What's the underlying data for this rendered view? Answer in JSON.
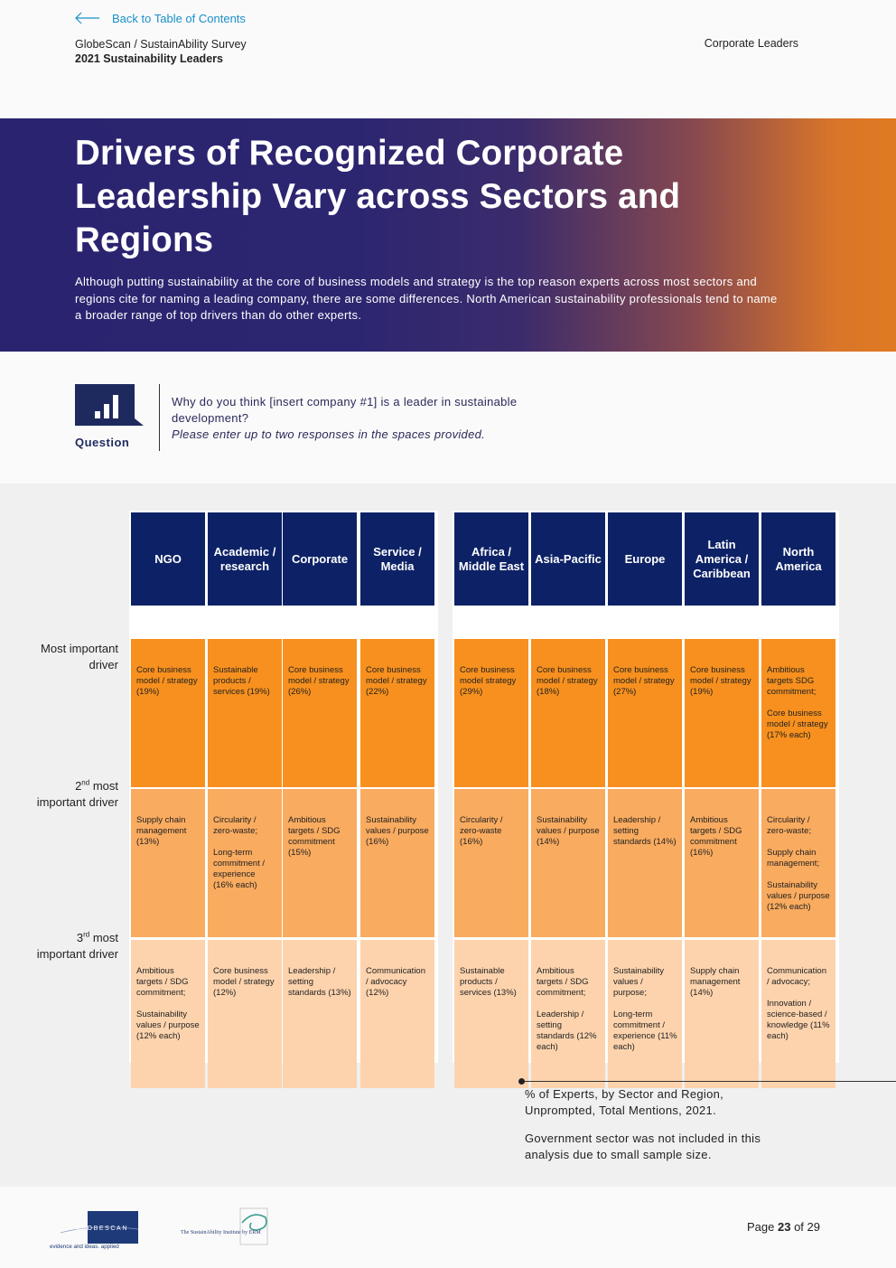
{
  "header": {
    "back_link": "Back to Table of Contents",
    "brand_line1": "GlobeScan / SustainAbility Survey",
    "brand_line2": "2021 Sustainability Leaders",
    "section": "Corporate Leaders"
  },
  "hero": {
    "title": "Drivers of Recognized Corporate Leadership Vary across Sectors and Regions",
    "description": "Although putting sustainability at the core of business models and strategy is the top reason experts across most sectors and regions cite for naming a leading company, there are some differences. North American sustainability professionals tend to name a broader range of top drivers than do other experts."
  },
  "question": {
    "label": "Question",
    "text": "Why do you think [insert company #1] is a leader in sustainable development?",
    "instruction": "Please enter up to two responses in the spaces provided."
  },
  "table": {
    "row_labels": [
      {
        "prefix": "",
        "sup": "",
        "rest": "Most important driver"
      },
      {
        "prefix": "2",
        "sup": "nd",
        "rest": " most important driver"
      },
      {
        "prefix": "3",
        "sup": "rd",
        "rest": " most important driver"
      }
    ],
    "sectors": [
      {
        "name": "NGO",
        "cells": [
          "Core business model / strategy (19%)",
          "Supply chain management (13%)",
          "Ambitious targets / SDG commitment;\n\nSustainability values / purpose (12% each)"
        ]
      },
      {
        "name": "Academic / research",
        "cells": [
          "Sustainable products / services (19%)",
          "Circularity / zero-waste;\n\nLong-term commitment / experience (16% each)",
          "Core business model / strategy (12%)"
        ]
      },
      {
        "name": "Corporate",
        "cells": [
          "Core business model / strategy (26%)",
          "Ambitious targets / SDG commitment (15%)",
          "Leadership / setting standards (13%)"
        ]
      },
      {
        "name": "Service / Media",
        "cells": [
          "Core business model / strategy (22%)",
          "Sustainability values / purpose (16%)",
          "Communication / advocacy (12%)"
        ]
      }
    ],
    "regions": [
      {
        "name": "Africa / Middle East",
        "cells": [
          "Core business model strategy (29%)",
          "Circularity / zero-waste (16%)",
          "Sustainable products / services (13%)"
        ]
      },
      {
        "name": "Asia-Pacific",
        "cells": [
          "Core business model / strategy (18%)",
          "Sustainability values / purpose (14%)",
          "Ambitious targets / SDG commitment;\n\nLeadership / setting standards (12% each)"
        ]
      },
      {
        "name": "Europe",
        "cells": [
          "Core business model / strategy (27%)",
          "Leadership / setting standards (14%)",
          "Sustainability values / purpose;\n\nLong-term commitment / experience (11% each)"
        ]
      },
      {
        "name": "Latin America / Caribbean",
        "cells": [
          "Core business model / strategy (19%)",
          "Ambitious targets / SDG commitment (16%)",
          "Supply chain management (14%)"
        ]
      },
      {
        "name": "North America",
        "cells": [
          "Ambitious targets SDG commitment;\n\nCore business model / strategy (17% each)",
          "Circularity / zero-waste;\n\nSupply chain management;\n\nSustainability values / purpose (12% each)",
          "Communication / advocacy;\n\nInnovation / science-based / knowledge (11% each)"
        ]
      }
    ]
  },
  "caption": {
    "line1": "% of Experts, by Sector and Region, Unprompted, Total Mentions, 2021.",
    "line2": "Government sector was not included in this analysis due to small sample size."
  },
  "footer": {
    "globescan_logo": "GLOBESCAN",
    "globescan_tagline": "evidence and ideas. applied",
    "sustainability_logo": "The SustainAbility Institute by ERM",
    "page_label": "Page",
    "page_current": "23",
    "page_of": "of 29"
  },
  "colors": {
    "header_navy": "#0d2266",
    "row1_orange": "#f7901e",
    "row2_orange": "#f9ab5f",
    "row3_peach": "#fdd3ad",
    "link_blue": "#1a8fc9"
  }
}
